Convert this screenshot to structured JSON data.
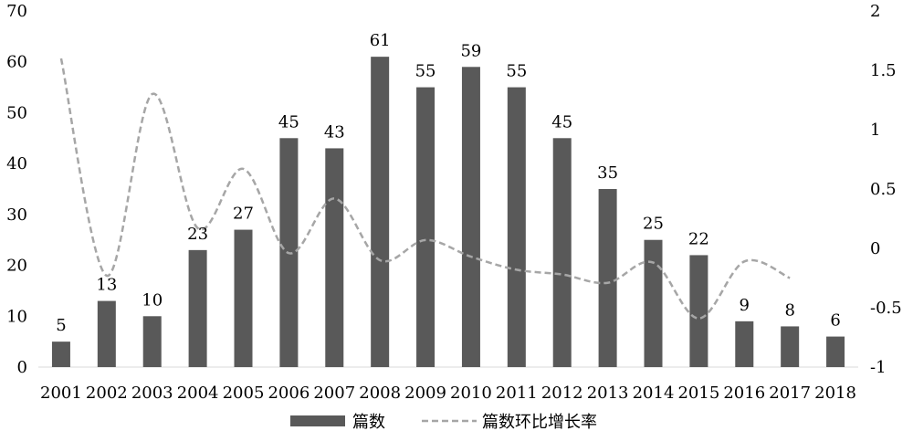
{
  "chart_data": {
    "type": "bar",
    "categories": [
      "2001",
      "2002",
      "2003",
      "2004",
      "2005",
      "2006",
      "2007",
      "2008",
      "2009",
      "2010",
      "2011",
      "2012",
      "2013",
      "2014",
      "2015",
      "2016",
      "2017",
      "2018"
    ],
    "series": [
      {
        "name": "篇数",
        "type": "bar",
        "axis": "left",
        "color": "#595959",
        "data_labels": true,
        "values": [
          5,
          13,
          10,
          23,
          27,
          45,
          43,
          61,
          55,
          59,
          55,
          45,
          35,
          25,
          22,
          9,
          8,
          6
        ]
      },
      {
        "name": "篇数环比增长率",
        "type": "line",
        "axis": "right",
        "line_style": "dashed",
        "smooth": true,
        "color": "#a6a6a6",
        "values": [
          1.6,
          -0.23,
          1.3,
          0.17,
          0.67,
          -0.04,
          0.42,
          -0.1,
          0.07,
          -0.07,
          -0.18,
          -0.22,
          -0.29,
          -0.12,
          -0.59,
          -0.11,
          -0.25,
          null
        ]
      }
    ],
    "y_left": {
      "ylim": [
        0,
        70
      ],
      "ticks": [
        0,
        10,
        20,
        30,
        40,
        50,
        60,
        70
      ]
    },
    "y_right": {
      "ylim": [
        -1,
        2
      ],
      "ticks": [
        -1,
        -0.5,
        0,
        0.5,
        1,
        1.5,
        2
      ]
    },
    "grid": false,
    "legend": "bottom"
  }
}
